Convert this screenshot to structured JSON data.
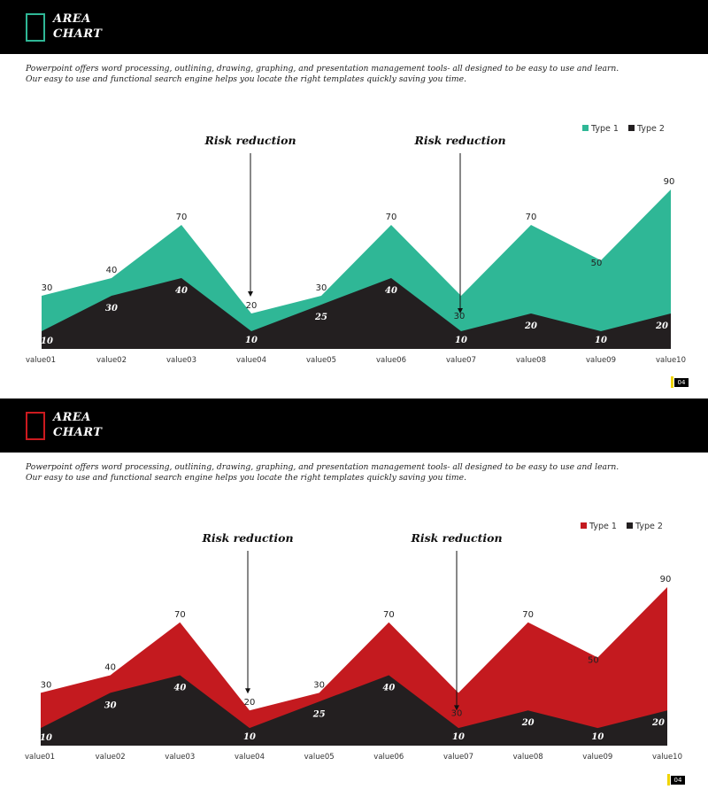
{
  "slides": [
    {
      "header": {
        "title_line1": "AREA",
        "title_line2": "CHART",
        "square_color": "#2fb796"
      },
      "description": {
        "line1": "Powerpoint offers word processing,  outlining, drawing, graphing, and presentation management tools- all designed  to be easy to use and learn.",
        "line2": "Our easy to use and functional search engine helps  you locate the right  templates quickly saving you time."
      },
      "annotations": [
        "Risk reduction",
        "Risk reduction"
      ],
      "page_number": "04"
    },
    {
      "header": {
        "title_line1": "AREA",
        "title_line2": "CHART",
        "square_color": "#cc1a1f"
      },
      "description": {
        "line1": "Powerpoint offers word processing,  outlining, drawing, graphing, and presentation management tools- all designed  to be easy to use and learn.",
        "line2": "Our easy to use and functional search engine helps  you locate the right  templates quickly saving you time."
      },
      "annotations": [
        "Risk reduction",
        "Risk reduction"
      ],
      "page_number": "04"
    }
  ],
  "chart_data": [
    {
      "type": "area",
      "categories": [
        "value01",
        "value02",
        "value03",
        "value04",
        "value05",
        "value06",
        "value07",
        "value08",
        "value09",
        "value10"
      ],
      "series": [
        {
          "name": "Type 1",
          "color": "#2fb796",
          "values": [
            30,
            40,
            70,
            20,
            30,
            70,
            30,
            70,
            50,
            90
          ]
        },
        {
          "name": "Type 2",
          "color": "#231f20",
          "values": [
            10,
            30,
            40,
            10,
            25,
            40,
            10,
            20,
            10,
            20
          ]
        }
      ],
      "ylim": [
        0,
        90
      ],
      "grid": false,
      "legend": "top-right",
      "annotations": [
        {
          "text": "Risk reduction",
          "category": "value04"
        },
        {
          "text": "Risk reduction",
          "category": "value07"
        }
      ]
    },
    {
      "type": "area",
      "categories": [
        "value01",
        "value02",
        "value03",
        "value04",
        "value05",
        "value06",
        "value07",
        "value08",
        "value09",
        "value10"
      ],
      "series": [
        {
          "name": "Type 1",
          "color": "#c41a1f",
          "values": [
            30,
            40,
            70,
            20,
            30,
            70,
            30,
            70,
            50,
            90
          ]
        },
        {
          "name": "Type 2",
          "color": "#231f20",
          "values": [
            10,
            30,
            40,
            10,
            25,
            40,
            10,
            20,
            10,
            20
          ]
        }
      ],
      "ylim": [
        0,
        90
      ],
      "grid": false,
      "legend": "top-right",
      "annotations": [
        {
          "text": "Risk reduction",
          "category": "value04"
        },
        {
          "text": "Risk reduction",
          "category": "value07"
        }
      ]
    }
  ]
}
